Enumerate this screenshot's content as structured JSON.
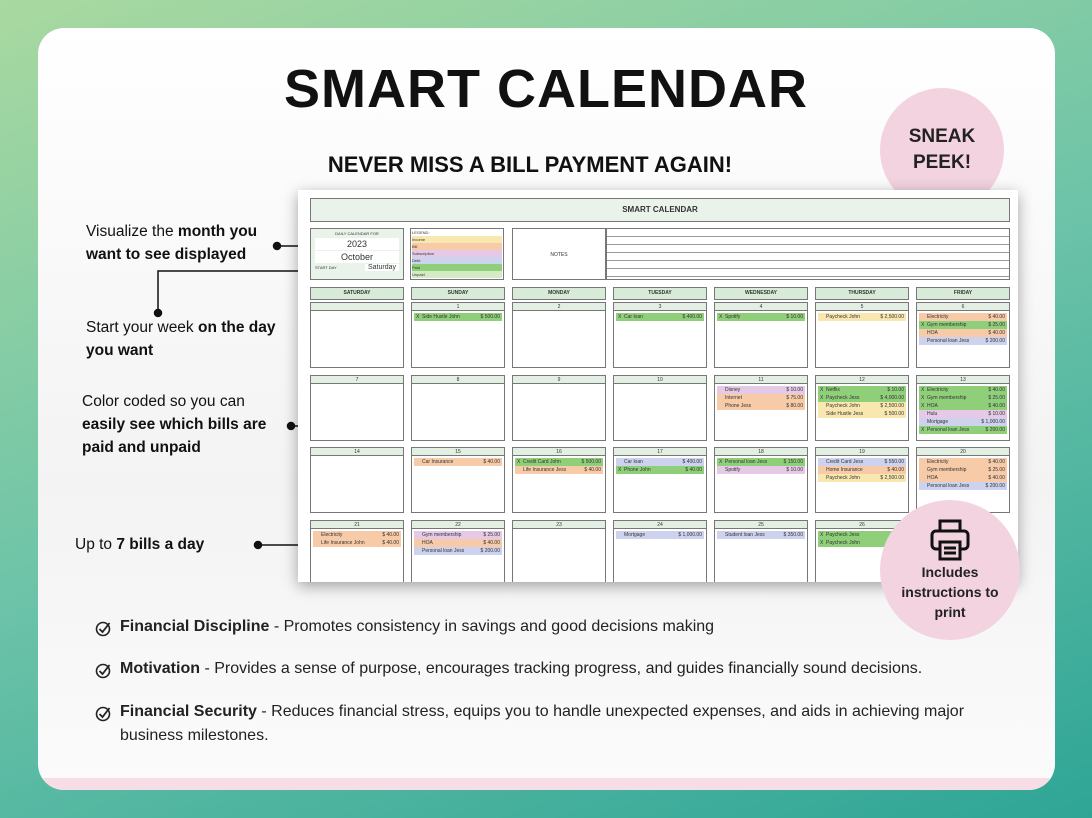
{
  "header": {
    "title": "SMART CALENDAR",
    "subtitle": "NEVER MISS A BILL PAYMENT AGAIN!"
  },
  "badge": {
    "lines": [
      "SNEAK",
      "PEEK!"
    ]
  },
  "callouts": [
    [
      {
        "text": "Visualize the ",
        "bold": false
      },
      {
        "text": "month you want to see displayed",
        "bold": true
      }
    ],
    [
      {
        "text": "Start your week ",
        "bold": false
      },
      {
        "text": "on the day you want",
        "bold": true
      }
    ],
    [
      {
        "text": "Color coded so you can ",
        "bold": false
      },
      {
        "text": "easily see which bills are paid and unpaid",
        "bold": true
      }
    ],
    [
      {
        "text": "Up to ",
        "bold": false
      },
      {
        "text": "7 bills a day",
        "bold": true
      }
    ]
  ],
  "sheet": {
    "title": "SMART CALENDAR",
    "control": {
      "label": "DAILY CALENDAR FOR",
      "year": "2023",
      "month": "October",
      "start_label": "START DAY",
      "start": "Saturday"
    },
    "legend": {
      "title": "LEGEND:",
      "items": [
        {
          "label": "Income",
          "color": "#f9e7b0"
        },
        {
          "label": "Bill",
          "color": "#f8cba8"
        },
        {
          "label": "Subscription",
          "color": "#e6c9e6"
        },
        {
          "label": "Debt",
          "color": "#cdd3ee"
        },
        {
          "label": "Paid",
          "color": "#8fcf7a"
        },
        {
          "label": "Unpaid",
          "color": "#d4ecc6"
        }
      ]
    },
    "notes": "NOTES",
    "weekdays": [
      "SATURDAY",
      "SUNDAY",
      "MONDAY",
      "TUESDAY",
      "WEDNESDAY",
      "THURSDAY",
      "FRIDAY"
    ],
    "weeks": [
      [
        {
          "day": null,
          "bills": []
        },
        {
          "day": "1",
          "bills": [
            {
              "mark": "X",
              "name": "Side Hustle John",
              "amount": "$ 500.00",
              "type": "Paid"
            }
          ]
        },
        {
          "day": "2",
          "bills": []
        },
        {
          "day": "3",
          "bills": [
            {
              "mark": "X",
              "name": "Car loan",
              "amount": "$ 400.00",
              "type": "Paid"
            }
          ]
        },
        {
          "day": "4",
          "bills": [
            {
              "mark": "X",
              "name": "Spotify",
              "amount": "$ 10.00",
              "type": "Paid"
            }
          ]
        },
        {
          "day": "5",
          "bills": [
            {
              "name": "Paycheck John",
              "amount": "$ 2,500.00",
              "type": "Income"
            }
          ]
        },
        {
          "day": "6",
          "bills": [
            {
              "name": "Electricity",
              "amount": "$ 40.00",
              "type": "Bill"
            },
            {
              "mark": "X",
              "name": "Gym membership",
              "amount": "$ 25.00",
              "type": "Paid"
            },
            {
              "name": "HOA",
              "amount": "$ 40.00",
              "type": "Bill"
            },
            {
              "name": "Personal loan Jess",
              "amount": "$ 200.00",
              "type": "Debt"
            }
          ]
        }
      ],
      [
        {
          "day": "7",
          "bills": []
        },
        {
          "day": "8",
          "bills": []
        },
        {
          "day": "9",
          "bills": []
        },
        {
          "day": "10",
          "bills": []
        },
        {
          "day": "11",
          "bills": [
            {
              "name": "Disney",
              "amount": "$ 10.00",
              "type": "Subscription"
            },
            {
              "name": "Internet",
              "amount": "$ 75.00",
              "type": "Bill"
            },
            {
              "name": "Phone Jess",
              "amount": "$ 80.00",
              "type": "Bill"
            }
          ]
        },
        {
          "day": "12",
          "bills": [
            {
              "mark": "X",
              "name": "Netflix",
              "amount": "$ 10.00",
              "type": "Paid"
            },
            {
              "mark": "X",
              "name": "Paycheck Jess",
              "amount": "$ 4,000.00",
              "type": "Paid"
            },
            {
              "name": "Paycheck John",
              "amount": "$ 2,500.00",
              "type": "Income"
            },
            {
              "name": "Side Hustle Jess",
              "amount": "$ 500.00",
              "type": "Income"
            }
          ]
        },
        {
          "day": "13",
          "bills": [
            {
              "mark": "X",
              "name": "Electricity",
              "amount": "$ 40.00",
              "type": "Paid"
            },
            {
              "mark": "X",
              "name": "Gym membership",
              "amount": "$ 25.00",
              "type": "Paid"
            },
            {
              "mark": "X",
              "name": "HOA",
              "amount": "$ 40.00",
              "type": "Paid"
            },
            {
              "name": "Hulu",
              "amount": "$ 10.00",
              "type": "Subscription"
            },
            {
              "name": "Mortgage",
              "amount": "$ 1,000.00",
              "type": "Debt"
            },
            {
              "mark": "X",
              "name": "Personal loan Jess",
              "amount": "$ 200.00",
              "type": "Paid"
            }
          ]
        }
      ],
      [
        {
          "day": "14",
          "bills": []
        },
        {
          "day": "15",
          "bills": [
            {
              "name": "Car Insurance",
              "amount": "$ 40.00",
              "type": "Bill"
            }
          ]
        },
        {
          "day": "16",
          "bills": [
            {
              "mark": "X",
              "name": "Credit Card John",
              "amount": "$ 500.00",
              "type": "Paid"
            },
            {
              "name": "Life Insurance Jess",
              "amount": "$ 40.00",
              "type": "Bill"
            }
          ]
        },
        {
          "day": "17",
          "bills": [
            {
              "name": "Car loan",
              "amount": "$ 400.00",
              "type": "Debt"
            },
            {
              "mark": "X",
              "name": "Phone John",
              "amount": "$ 40.00",
              "type": "Paid"
            }
          ]
        },
        {
          "day": "18",
          "bills": [
            {
              "mark": "X",
              "name": "Personal loan Jess",
              "amount": "$ 150.00",
              "type": "Paid"
            },
            {
              "name": "Spotify",
              "amount": "$ 10.00",
              "type": "Subscription"
            }
          ]
        },
        {
          "day": "19",
          "bills": [
            {
              "name": "Credit Card Jess",
              "amount": "$ 550.00",
              "type": "Debt"
            },
            {
              "name": "Home Insurance",
              "amount": "$ 40.00",
              "type": "Bill"
            },
            {
              "name": "Paycheck John",
              "amount": "$ 2,500.00",
              "type": "Income"
            }
          ]
        },
        {
          "day": "20",
          "bills": [
            {
              "name": "Electricity",
              "amount": "$ 40.00",
              "type": "Bill"
            },
            {
              "name": "Gym membership",
              "amount": "$ 25.00",
              "type": "Bill"
            },
            {
              "name": "HOA",
              "amount": "$ 40.00",
              "type": "Bill"
            },
            {
              "name": "Personal loan Jess",
              "amount": "$ 200.00",
              "type": "Debt"
            }
          ]
        }
      ],
      [
        {
          "day": "21",
          "bills": [
            {
              "name": "Electricity",
              "amount": "$ 40.00",
              "type": "Bill"
            },
            {
              "name": "Life Insurance John",
              "amount": "$ 40.00",
              "type": "Bill"
            }
          ]
        },
        {
          "day": "22",
          "bills": [
            {
              "name": "Gym membership",
              "amount": "$ 25.00",
              "type": "Subscription"
            },
            {
              "name": "HOA",
              "amount": "$ 40.00",
              "type": "Bill"
            },
            {
              "name": "Personal loan Jess",
              "amount": "$ 200.00",
              "type": "Debt"
            }
          ]
        },
        {
          "day": "23",
          "bills": []
        },
        {
          "day": "24",
          "bills": [
            {
              "name": "Mortgage",
              "amount": "$ 1,000.00",
              "type": "Debt"
            }
          ]
        },
        {
          "day": "25",
          "bills": [
            {
              "name": "Student loan Jess",
              "amount": "$ 350.00",
              "type": "Debt"
            }
          ]
        },
        {
          "day": "26",
          "bills": [
            {
              "mark": "X",
              "name": "Paycheck Jess",
              "type": "Paid"
            },
            {
              "mark": "X",
              "name": "Paycheck John",
              "type": "Paid"
            }
          ]
        }
      ]
    ]
  },
  "print_badge": {
    "text": "Includes instructions to print"
  },
  "bullets": [
    {
      "title": "Financial Discipline",
      "text": " - Promotes consistency in savings and good decisions making"
    },
    {
      "title": "Motivation",
      "text": " - Provides a sense of purpose, encourages tracking progress, and guides financially sound decisions."
    },
    {
      "title": "Financial Security",
      "text": " - Reduces financial stress, equips you to handle unexpected expenses, and aids in achieving major business milestones."
    }
  ]
}
